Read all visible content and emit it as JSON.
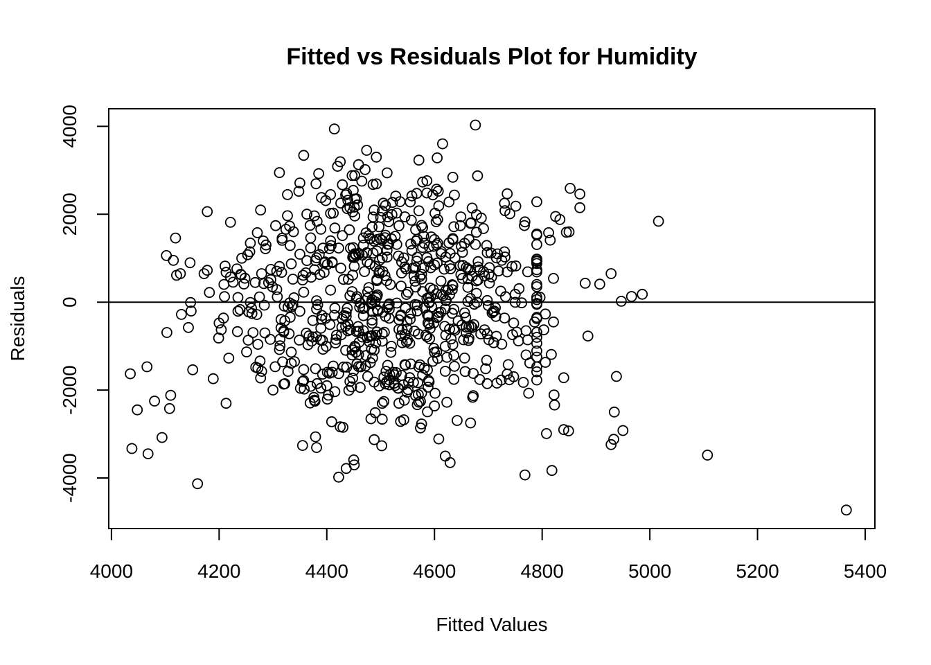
{
  "chart_data": {
    "type": "scatter",
    "title": "Fitted vs Residuals Plot for Humidity",
    "xlabel": "Fitted Values",
    "ylabel": "Residuals",
    "xlim": [
      3995,
      5418
    ],
    "ylim": [
      -5150,
      4400
    ],
    "x_ticks": [
      4000,
      4200,
      4400,
      4600,
      4800,
      5000,
      5200,
      5400
    ],
    "x_tick_labels": [
      "4000",
      "4200",
      "4400",
      "4600",
      "4800",
      "5000",
      "5200",
      "5400"
    ],
    "y_ticks": [
      -4000,
      -2000,
      0,
      2000,
      4000
    ],
    "y_tick_labels": [
      "-4000",
      "-2000",
      "0",
      "2000",
      "4000"
    ],
    "reference_line_y": 0,
    "grid": false,
    "marker": "open-circle",
    "colors": {
      "points": "#000000",
      "axes": "#000000",
      "background": "#ffffff"
    },
    "outliers": [
      {
        "x": 5365,
        "y": -4730
      },
      {
        "x": 5107,
        "y": -3480
      },
      {
        "x": 5016,
        "y": 1840
      },
      {
        "x": 4986,
        "y": 180
      },
      {
        "x": 4966,
        "y": 130
      },
      {
        "x": 4947,
        "y": 20
      },
      {
        "x": 4950,
        "y": -2920
      },
      {
        "x": 4938,
        "y": -1690
      },
      {
        "x": 4934,
        "y": -2500
      },
      {
        "x": 4933,
        "y": -3120
      },
      {
        "x": 4928,
        "y": -3240
      },
      {
        "x": 4928,
        "y": 650
      },
      {
        "x": 4907,
        "y": 410
      },
      {
        "x": 4880,
        "y": 430
      },
      {
        "x": 4885,
        "y": -770
      },
      {
        "x": 4870,
        "y": 2460
      },
      {
        "x": 4870,
        "y": 2150
      },
      {
        "x": 4852,
        "y": 2590
      },
      {
        "x": 4850,
        "y": 1600
      },
      {
        "x": 4845,
        "y": 1590
      },
      {
        "x": 4849,
        "y": -2930
      },
      {
        "x": 4840,
        "y": -2900
      },
      {
        "x": 4840,
        "y": -1720
      },
      {
        "x": 4825,
        "y": 1950
      },
      {
        "x": 4818,
        "y": -3830
      },
      {
        "x": 4821,
        "y": 540
      },
      {
        "x": 4821,
        "y": -450
      },
      {
        "x": 4822,
        "y": -2110
      },
      {
        "x": 4823,
        "y": -2340
      },
      {
        "x": 4833,
        "y": 1880
      },
      {
        "x": 4808,
        "y": -2990
      },
      {
        "x": 4806,
        "y": -1370
      },
      {
        "x": 4803,
        "y": -630
      },
      {
        "x": 4806,
        "y": -270
      },
      {
        "x": 4796,
        "y": 110
      },
      {
        "x": 4812,
        "y": 1580
      },
      {
        "x": 4815,
        "y": 1410
      },
      {
        "x": 4817,
        "y": -1190
      },
      {
        "x": 4102,
        "y": 1060
      },
      {
        "x": 4119,
        "y": 1460
      },
      {
        "x": 4128,
        "y": 650
      },
      {
        "x": 4103,
        "y": -690
      },
      {
        "x": 4110,
        "y": -2120
      },
      {
        "x": 4108,
        "y": -2420
      },
      {
        "x": 4094,
        "y": -3080
      },
      {
        "x": 4080,
        "y": -2250
      },
      {
        "x": 4068,
        "y": -3450
      },
      {
        "x": 4066,
        "y": -1470
      },
      {
        "x": 4048,
        "y": -2450
      },
      {
        "x": 4038,
        "y": -3330
      },
      {
        "x": 4035,
        "y": -1630
      },
      {
        "x": 4160,
        "y": -4130
      },
      {
        "x": 4414,
        "y": 3940
      },
      {
        "x": 4676,
        "y": 4030
      },
      {
        "x": 4422,
        "y": -3980
      },
      {
        "x": 4768,
        "y": -3930
      },
      {
        "x": 4629,
        "y": -3650
      }
    ],
    "seed": 20240607,
    "n_bulk_points": 760,
    "bulk_x_mean": 4510,
    "bulk_x_sd": 150,
    "bulk_y_range": [
      -3900,
      3900
    ],
    "bulk_y_sd": 1950
  }
}
